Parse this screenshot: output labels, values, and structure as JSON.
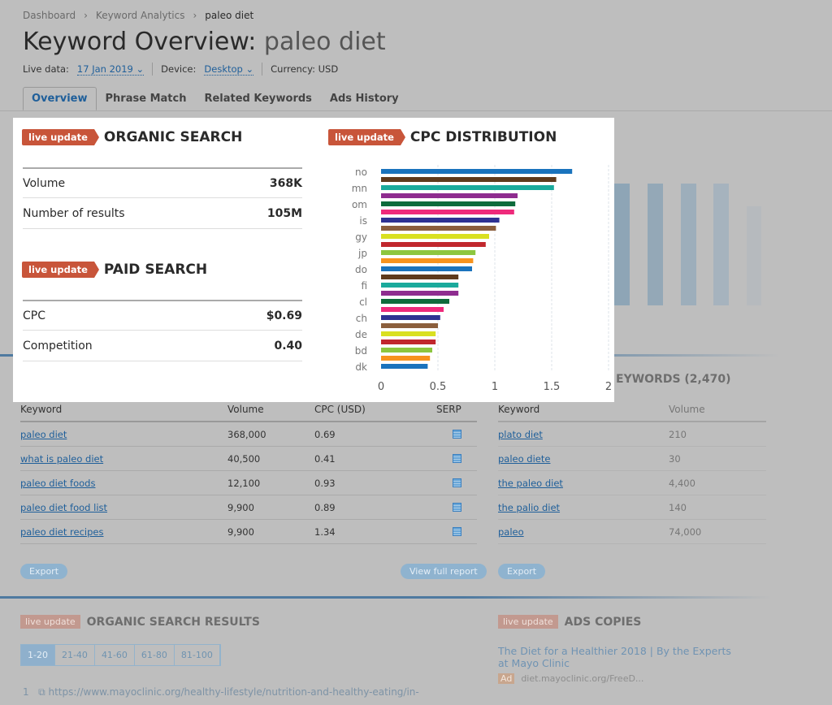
{
  "breadcrumb": [
    "Dashboard",
    "Keyword Analytics",
    "paleo diet"
  ],
  "header": {
    "title": "Keyword Overview:",
    "query": "paleo diet",
    "live_label": "Live data:",
    "live_value": "17 Jan 2019",
    "device_label": "Device:",
    "device_value": "Desktop",
    "currency": "Currency: USD"
  },
  "tabs": [
    "Overview",
    "Phrase Match",
    "Related Keywords",
    "Ads History"
  ],
  "badge": "live update",
  "organic": {
    "title": "ORGANIC SEARCH",
    "rows": [
      {
        "k": "Volume",
        "v": "368K"
      },
      {
        "k": "Number of results",
        "v": "105M"
      }
    ]
  },
  "paid": {
    "title": "PAID SEARCH",
    "rows": [
      {
        "k": "CPC",
        "v": "$0.69"
      },
      {
        "k": "Competition",
        "v": "0.40"
      }
    ]
  },
  "cpc": {
    "title": "CPC DISTRIBUTION"
  },
  "chart_data": {
    "type": "bar",
    "orientation": "horizontal",
    "grid": true,
    "categories": [
      "no",
      "",
      "mn",
      "",
      "om",
      "",
      "is",
      "",
      "gy",
      "",
      "jp",
      "",
      "do",
      "",
      "fi",
      "",
      "cl",
      "",
      "ch",
      "",
      "de",
      "",
      "bd",
      "",
      "dk"
    ],
    "values": [
      1.68,
      1.54,
      1.52,
      1.2,
      1.18,
      1.17,
      1.04,
      1.01,
      0.95,
      0.92,
      0.83,
      0.81,
      0.8,
      0.68,
      0.68,
      0.68,
      0.6,
      0.55,
      0.52,
      0.5,
      0.48,
      0.48,
      0.45,
      0.43,
      0.41
    ],
    "colors": [
      "#1a73bd",
      "#5e3a1c",
      "#1aaa9c",
      "#8e2c8f",
      "#0f6b3c",
      "#ee2a7b",
      "#2e3192",
      "#8b5e3c",
      "#d9e021",
      "#c1272d",
      "#8dc63f",
      "#f7931e"
    ],
    "xlim": [
      0,
      2
    ],
    "xticks": [
      "0",
      "0.5",
      "1",
      "1.5",
      "2"
    ]
  },
  "phrase": {
    "headers": [
      "Keyword",
      "Volume",
      "CPC (USD)",
      "SERP"
    ],
    "rows": [
      [
        "paleo diet",
        "368,000",
        "0.69"
      ],
      [
        "what is paleo diet",
        "40,500",
        "0.41"
      ],
      [
        "paleo diet foods",
        "12,100",
        "0.93"
      ],
      [
        "paleo diet food list",
        "9,900",
        "0.89"
      ],
      [
        "paleo diet recipes",
        "9,900",
        "1.34"
      ]
    ],
    "export": "Export",
    "full": "View full report"
  },
  "related": {
    "title": "EYWORDS (2,470)",
    "headers": [
      "Keyword",
      "Volume"
    ],
    "rows": [
      [
        "plato diet",
        "210"
      ],
      [
        "paleo diete",
        "30"
      ],
      [
        "the paleo diet",
        "4,400"
      ],
      [
        "the palio diet",
        "140"
      ],
      [
        "paleo",
        "74,000"
      ]
    ],
    "export": "Export"
  },
  "organic_results": {
    "title": "ORGANIC SEARCH RESULTS",
    "pages": [
      "1-20",
      "21-40",
      "41-60",
      "61-80",
      "81-100"
    ],
    "first_index": "1",
    "first_url": "https://www.mayoclinic.org/healthy-lifestyle/nutrition-and-healthy-eating/in-"
  },
  "ads": {
    "title": "ADS COPIES",
    "ad_title": "The Diet for a Healthier 2018 | By the Experts",
    "ad_title2": "at Mayo Clinic",
    "ad_badge": "Ad",
    "ad_url": "diet.mayoclinic.org/FreeD..."
  }
}
